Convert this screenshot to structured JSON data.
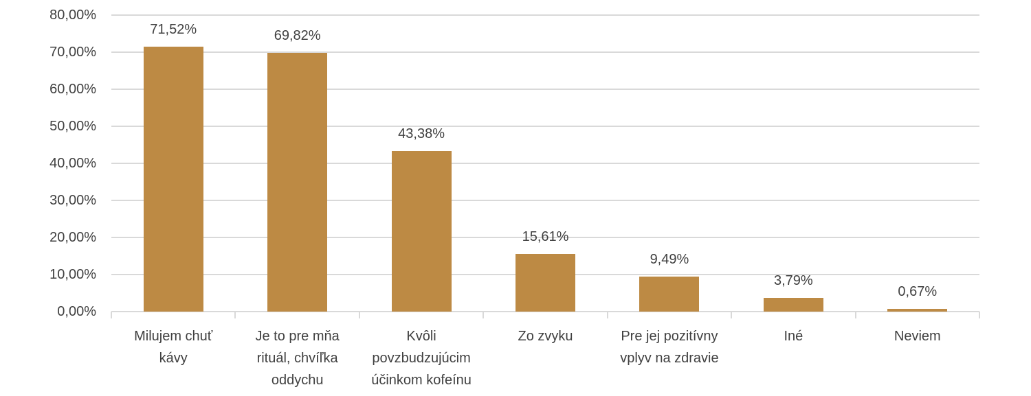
{
  "chart_data": {
    "type": "bar",
    "title": "",
    "xlabel": "",
    "ylabel": "",
    "categories": [
      "Milujem chuť kávy",
      "Je to pre mňa rituál, chvíľka oddychu",
      "Kvôli povzbudzujúcim účinkom kofeínu",
      "Zo zvyku",
      "Pre jej pozitívny vplyv na zdravie",
      "Iné",
      "Neviem"
    ],
    "category_lines": [
      [
        "Milujem chuť",
        "kávy"
      ],
      [
        "Je to pre mňa",
        "rituál, chvíľka",
        "oddychu"
      ],
      [
        "Kvôli",
        "povzbudzujúcim",
        "účinkom kofeínu"
      ],
      [
        "Zo zvyku"
      ],
      [
        "Pre jej pozitívny",
        "vplyv na zdravie"
      ],
      [
        "Iné"
      ],
      [
        "Neviem"
      ]
    ],
    "values": [
      71.52,
      69.82,
      43.38,
      15.61,
      9.49,
      3.79,
      0.67
    ],
    "value_labels": [
      "71,52%",
      "69,82%",
      "43,38%",
      "15,61%",
      "9,49%",
      "3,79%",
      "0,67%"
    ],
    "ylim": [
      0,
      80
    ],
    "yticks": [
      0,
      10,
      20,
      30,
      40,
      50,
      60,
      70,
      80
    ],
    "ytick_labels": [
      "0,00%",
      "10,00%",
      "20,00%",
      "30,00%",
      "40,00%",
      "50,00%",
      "60,00%",
      "70,00%",
      "80,00%"
    ],
    "grid": true,
    "legend": null,
    "bar_color": "#BD8A44",
    "grid_color": "#D9D9D9"
  }
}
